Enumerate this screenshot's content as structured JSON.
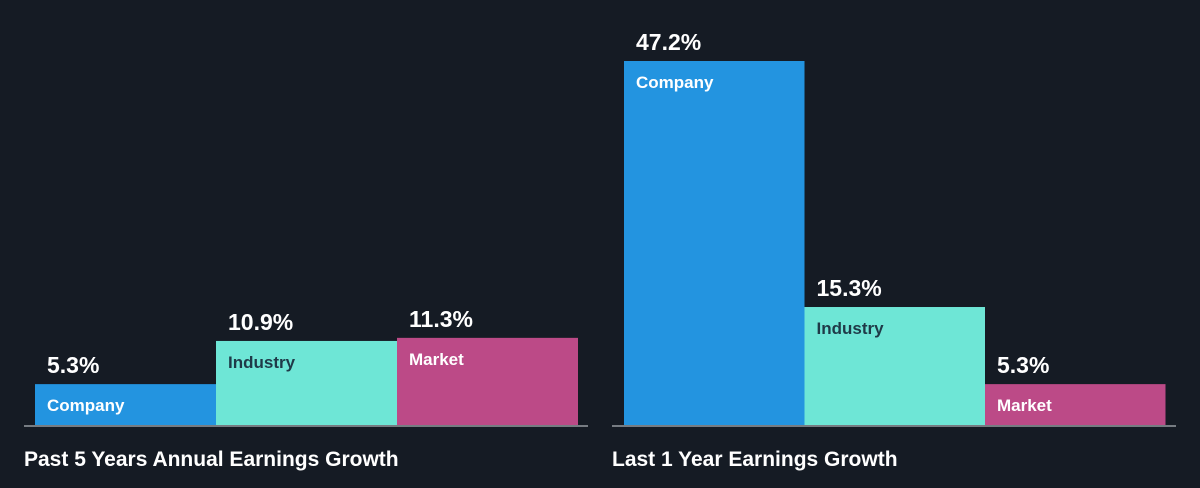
{
  "colors": {
    "background": "#151b24",
    "baseline": "#d8dce0",
    "company": "#2394e0",
    "industry": "#6ee6d6",
    "market": "#bc4a87",
    "label_light": "#ffffff",
    "label_dark": "#1f3a48"
  },
  "chart_data": [
    {
      "type": "bar",
      "title": "Past 5 Years Annual Earnings Growth",
      "categories": [
        "Company",
        "Industry",
        "Market"
      ],
      "values": [
        5.3,
        10.9,
        11.3
      ],
      "value_labels": [
        "5.3%",
        "10.9%",
        "11.3%"
      ],
      "unit": "%",
      "grid": false
    },
    {
      "type": "bar",
      "title": "Last 1 Year Earnings Growth",
      "categories": [
        "Company",
        "Industry",
        "Market"
      ],
      "values": [
        47.2,
        15.3,
        5.3
      ],
      "value_labels": [
        "47.2%",
        "15.3%",
        "5.3%"
      ],
      "unit": "%",
      "grid": false
    }
  ]
}
